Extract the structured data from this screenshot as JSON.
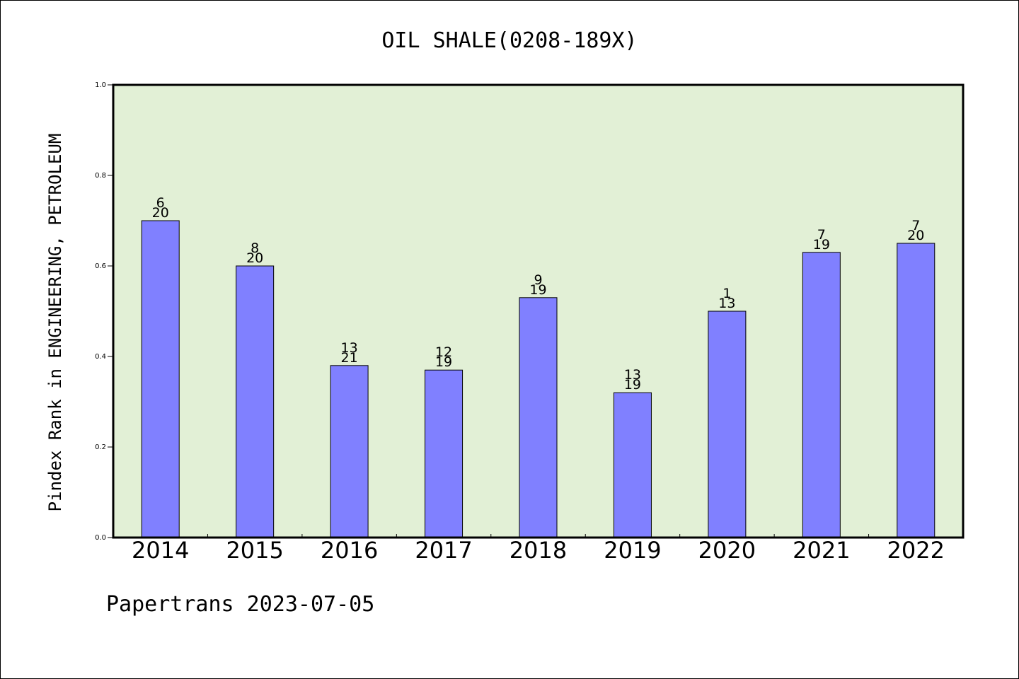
{
  "chart_data": {
    "type": "bar",
    "title": "OIL SHALE(0208-189X)",
    "xlabel": "",
    "ylabel": "Pindex Rank in ENGINEERING, PETROLEUM",
    "ylim": [
      0,
      1.0
    ],
    "y_ticks": [
      "0.0",
      "0.2",
      "0.4",
      "0.6",
      "0.8",
      "1.0"
    ],
    "grid": false,
    "categories": [
      "2014",
      "2015",
      "2016",
      "2017",
      "2018",
      "2019",
      "2020",
      "2021",
      "2022"
    ],
    "values": [
      0.7,
      0.6,
      0.38,
      0.37,
      0.53,
      0.32,
      0.5,
      0.63,
      0.65
    ],
    "rank_labels": [
      {
        "rank": "6",
        "total": "20"
      },
      {
        "rank": "8",
        "total": "20"
      },
      {
        "rank": "13",
        "total": "21"
      },
      {
        "rank": "12",
        "total": "19"
      },
      {
        "rank": "9",
        "total": "19"
      },
      {
        "rank": "13",
        "total": "19"
      },
      {
        "rank": "1",
        "total": "13"
      },
      {
        "rank": "7",
        "total": "19"
      },
      {
        "rank": "7",
        "total": "20"
      }
    ],
    "colors": {
      "bar": "#8080ff",
      "plot_background": "#e2f0d6",
      "axis": "#000000"
    }
  },
  "footer": {
    "credit": "Papertrans 2023-07-05"
  }
}
